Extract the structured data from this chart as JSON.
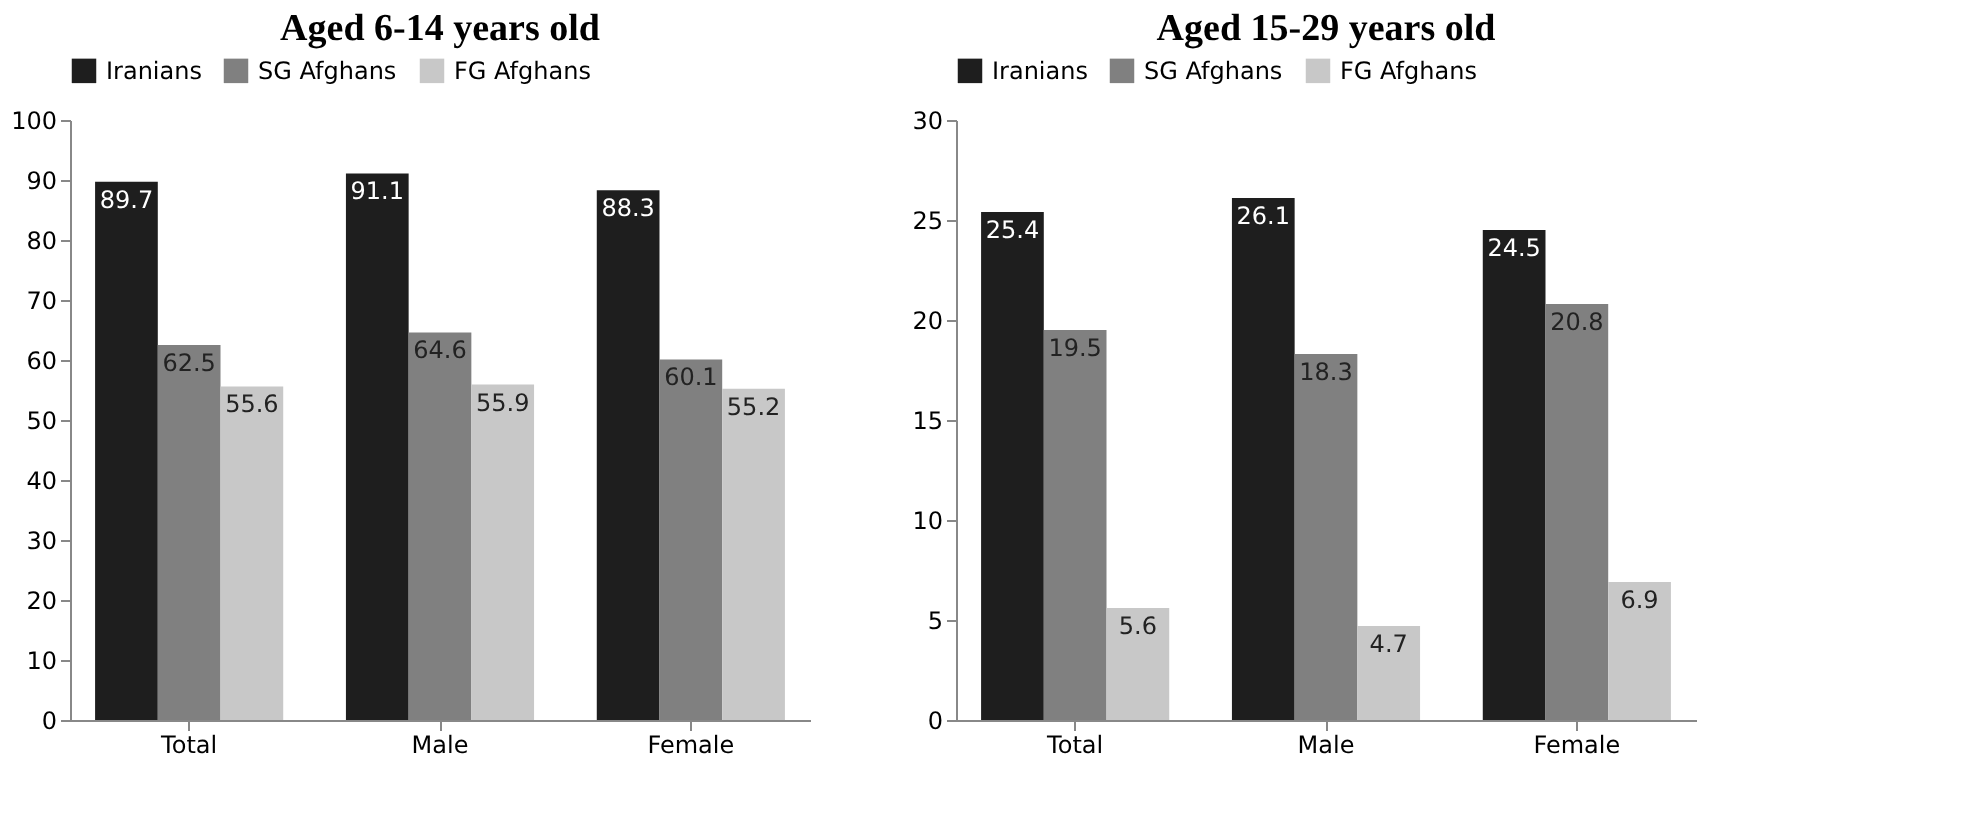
{
  "chart_data": [
    {
      "type": "bar",
      "title": "Aged 6-14 years old",
      "categories": [
        "Total",
        "Male",
        "Female"
      ],
      "series": [
        {
          "name": "Iranians",
          "color": "#1e1e1e",
          "values": [
            89.7,
            91.1,
            88.3
          ]
        },
        {
          "name": "SG Afghans",
          "color": "#808080",
          "values": [
            62.5,
            64.6,
            60.1
          ]
        },
        {
          "name": "FG Afghans",
          "color": "#c8c8c8",
          "values": [
            55.6,
            55.9,
            55.2
          ]
        }
      ],
      "ylim": [
        0,
        100
      ],
      "yticks": [
        0,
        10,
        20,
        30,
        40,
        50,
        60,
        70,
        80,
        90,
        100
      ],
      "data_labels": true,
      "legend": "top",
      "grid": false
    },
    {
      "type": "bar",
      "title": "Aged 15-29 years old",
      "categories": [
        "Total",
        "Male",
        "Female"
      ],
      "series": [
        {
          "name": "Iranians",
          "color": "#1e1e1e",
          "values": [
            25.4,
            26.1,
            24.5
          ]
        },
        {
          "name": "SG Afghans",
          "color": "#808080",
          "values": [
            19.5,
            18.3,
            20.8
          ]
        },
        {
          "name": "FG Afghans",
          "color": "#c8c8c8",
          "values": [
            5.6,
            4.7,
            6.9
          ]
        }
      ],
      "ylim": [
        0,
        30
      ],
      "yticks": [
        0,
        5,
        10,
        15,
        20,
        25,
        30
      ],
      "data_labels": true,
      "legend": "top",
      "grid": false
    }
  ]
}
